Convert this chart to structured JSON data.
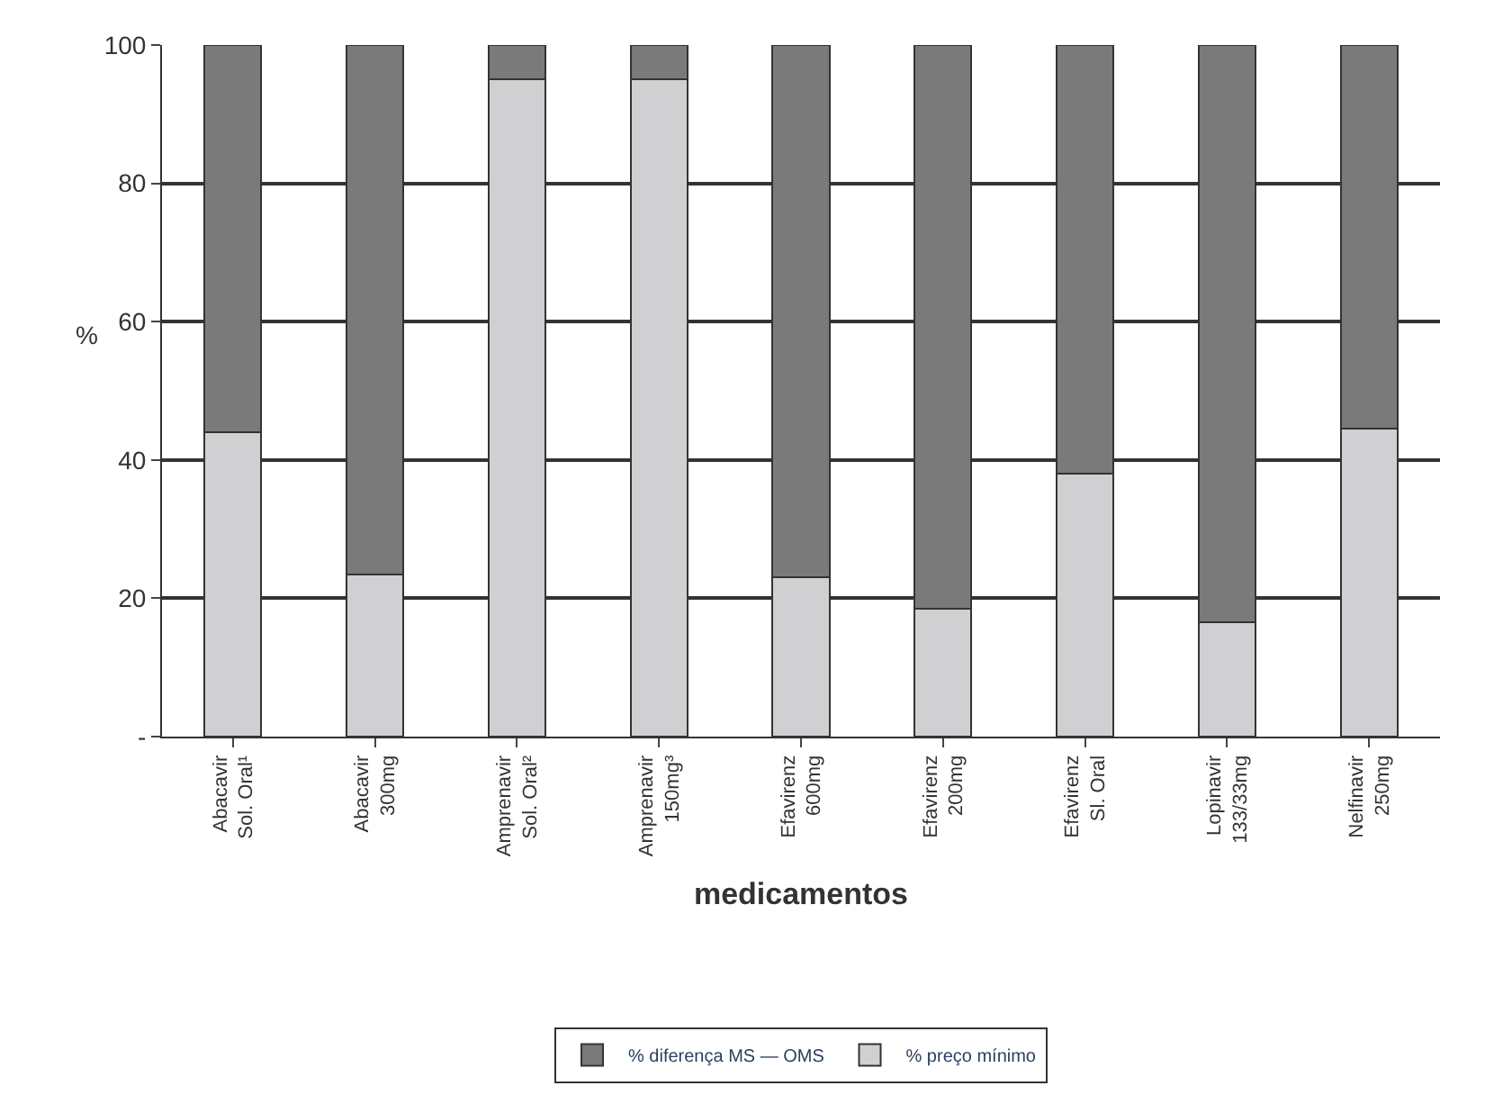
{
  "chart_data": {
    "type": "bar",
    "stacked": true,
    "xlabel": "medicamentos",
    "ylabel": "%",
    "categories": [
      "Abacavir\nSol. Oral¹",
      "Abacavir\n300mg",
      "Amprenavir\nSol. Oral²",
      "Amprenavir\n150mg³",
      "Efavirenz\n600mg",
      "Efavirenz\n200mg",
      "Efavirenz\nSl. Oral",
      "Lopinavir\n133/33mg",
      "Nelfinavir\n250mg"
    ],
    "series": [
      {
        "name": "% preço mínimo",
        "color": "#d0d0d2",
        "values": [
          44,
          23.5,
          95,
          95,
          23,
          18.5,
          38,
          16.5,
          44.5
        ]
      },
      {
        "name": "% diferença MS — OMS",
        "color": "#7a7a7a",
        "values": [
          56,
          76.5,
          5,
          5,
          77,
          81.5,
          62,
          83.5,
          55.5
        ]
      }
    ],
    "ylim": [
      0,
      100
    ],
    "yticks": [
      {
        "value": 0,
        "label": "-"
      },
      20,
      40,
      60,
      80,
      100
    ],
    "grid": "y",
    "legend": "bottom"
  }
}
